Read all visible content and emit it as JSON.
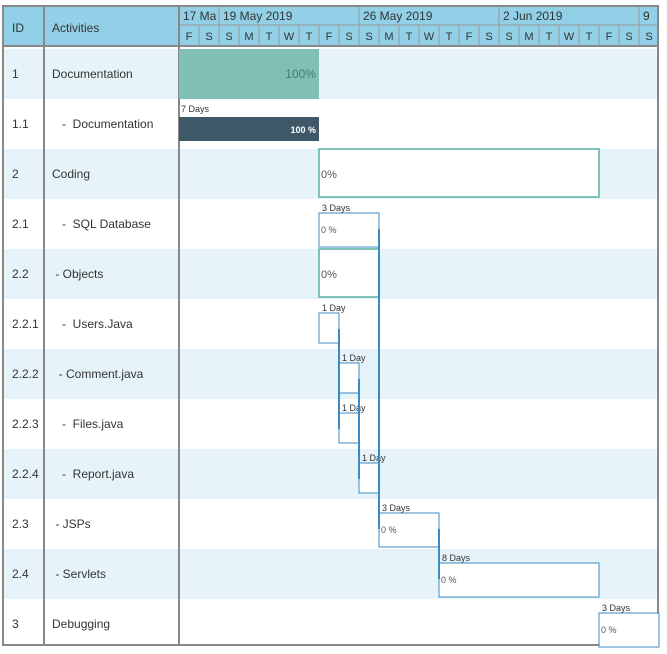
{
  "header": {
    "id_label": "ID",
    "activities_label": "Activities",
    "weeks": [
      "17 Ma",
      "19 May 2019",
      "26 May 2019",
      "2 Jun 2019",
      "9"
    ],
    "days": [
      "F",
      "S",
      "S",
      "M",
      "T",
      "W",
      "T",
      "F",
      "S",
      "S",
      "M",
      "T",
      "W",
      "T",
      "F",
      "S",
      "S",
      "M",
      "T",
      "W",
      "T",
      "F",
      "S",
      "S"
    ]
  },
  "rows": [
    {
      "id": "1",
      "name": "Documentation",
      "start": 0,
      "days": 7,
      "progress": "100%",
      "duration": ""
    },
    {
      "id": "1.1",
      "name": "   -  Documentation",
      "start": 0,
      "days": 7,
      "progress": "100 %",
      "duration": "7 Days"
    },
    {
      "id": "2",
      "name": "Coding",
      "start": 7,
      "days": 14,
      "progress": "0%",
      "duration": ""
    },
    {
      "id": "2.1",
      "name": "   -  SQL Database",
      "start": 7,
      "days": 3,
      "progress": "0 %",
      "duration": "3 Days"
    },
    {
      "id": "2.2",
      "name": " - Objects",
      "start": 7,
      "days": 3,
      "progress": "0%",
      "duration": ""
    },
    {
      "id": "2.2.1",
      "name": "   -  Users.Java",
      "start": 7,
      "days": 1,
      "progress": "",
      "duration": "1 Day"
    },
    {
      "id": "2.2.2",
      "name": "  - Comment.java",
      "start": 8,
      "days": 1,
      "progress": "",
      "duration": "1 Day"
    },
    {
      "id": "2.2.3",
      "name": "   -  Files.java",
      "start": 8,
      "days": 1,
      "progress": "",
      "duration": "1 Day"
    },
    {
      "id": "2.2.4",
      "name": "   -  Report.java",
      "start": 9,
      "days": 1,
      "progress": "",
      "duration": "1 Day"
    },
    {
      "id": "2.3",
      "name": " - JSPs",
      "start": 10,
      "days": 3,
      "progress": "0 %",
      "duration": "3 Days"
    },
    {
      "id": "2.4",
      "name": " - Servlets",
      "start": 13,
      "days": 8,
      "progress": "0 %",
      "duration": "8 Days"
    },
    {
      "id": "3",
      "name": "Debugging",
      "start": 21,
      "days": 3,
      "progress": "0 %",
      "duration": "3 Days"
    }
  ],
  "colors": {
    "header_bg": "#92d0e8",
    "row_alt_bg": "#e6f4f9",
    "grid": "#999999",
    "summary_done": "#80bfb3",
    "summary_border": "#7fc3b6",
    "task_done": "#3e5868",
    "task_border": "#3c8ac4",
    "link": "#3c8ac4"
  },
  "links": [
    [
      "2.1",
      "2.3"
    ],
    [
      "2.2.1",
      "2.2.2"
    ],
    [
      "2.2.1",
      "2.2.3"
    ],
    [
      "2.2.2",
      "2.2.4"
    ],
    [
      "2.2.3",
      "2.2.4"
    ],
    [
      "2.2.4",
      "2.3"
    ],
    [
      "2.3",
      "2.4"
    ]
  ]
}
